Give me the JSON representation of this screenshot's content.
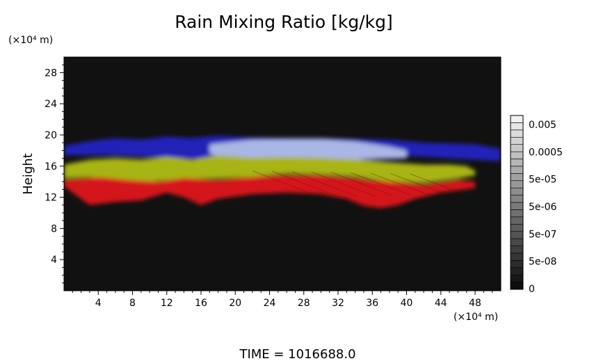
{
  "chart_data": {
    "type": "heatmap",
    "title": "Rain Mixing Ratio [kg/kg]",
    "ylabel": "Height",
    "yunit": "(×10⁴ m)",
    "xunit": "(×10⁴ m)",
    "xlim": [
      0,
      51
    ],
    "ylim": [
      0,
      30
    ],
    "xticks": [
      4,
      8,
      12,
      16,
      20,
      24,
      28,
      32,
      36,
      40,
      44,
      48
    ],
    "yticks": [
      4,
      8,
      12,
      16,
      20,
      24,
      28
    ],
    "colorbar": {
      "labels": [
        "0.005",
        "0.0005",
        "5e-05",
        "5e-06",
        "5e-07",
        "5e-08",
        "0"
      ]
    },
    "footer": "TIME = 1016688.0",
    "layers": [
      {
        "color": "#2424b8",
        "top": [
          [
            0,
            18.6
          ],
          [
            3,
            19.2
          ],
          [
            6,
            19.6
          ],
          [
            9,
            19.4
          ],
          [
            12,
            19.8
          ],
          [
            15,
            19.6
          ],
          [
            18,
            19.9
          ],
          [
            22,
            19.7
          ],
          [
            26,
            19.6
          ],
          [
            30,
            19.6
          ],
          [
            34,
            19.5
          ],
          [
            38,
            19.4
          ],
          [
            42,
            19.0
          ],
          [
            45,
            18.9
          ],
          [
            48,
            18.8
          ],
          [
            51,
            18.2
          ]
        ],
        "bottom": [
          [
            51,
            16.6
          ],
          [
            48,
            16.8
          ],
          [
            45,
            17.0
          ],
          [
            42,
            17.2
          ],
          [
            38,
            17.4
          ],
          [
            34,
            17.6
          ],
          [
            30,
            17.6
          ],
          [
            26,
            17.3
          ],
          [
            22,
            17.2
          ],
          [
            18,
            16.9
          ],
          [
            14,
            17.0
          ],
          [
            10,
            17.2
          ],
          [
            6,
            17.4
          ],
          [
            3,
            17.4
          ],
          [
            0,
            17.4
          ]
        ]
      },
      {
        "color": "#aab6e6",
        "top": [
          [
            17,
            18.8
          ],
          [
            22,
            19.4
          ],
          [
            26,
            19.5
          ],
          [
            30,
            19.5
          ],
          [
            34,
            19.2
          ],
          [
            38,
            18.5
          ],
          [
            40,
            18.0
          ]
        ],
        "bottom": [
          [
            40,
            17.0
          ],
          [
            36,
            16.9
          ],
          [
            30,
            16.8
          ],
          [
            24,
            16.8
          ],
          [
            19,
            17.0
          ],
          [
            17,
            17.6
          ]
        ]
      },
      {
        "color": "#a8b414",
        "top": [
          [
            0,
            16.2
          ],
          [
            3,
            16.8
          ],
          [
            6,
            17.0
          ],
          [
            9,
            16.8
          ],
          [
            12,
            17.2
          ],
          [
            15,
            16.8
          ],
          [
            18,
            17.4
          ],
          [
            22,
            17.1
          ],
          [
            26,
            17.2
          ],
          [
            30,
            17.1
          ],
          [
            34,
            16.9
          ],
          [
            38,
            16.5
          ],
          [
            42,
            16.2
          ],
          [
            45,
            16.2
          ],
          [
            47,
            16.0
          ],
          [
            48,
            15.4
          ]
        ],
        "bottom": [
          [
            48,
            14.8
          ],
          [
            46,
            14.4
          ],
          [
            42,
            13.8
          ],
          [
            38,
            14.0
          ],
          [
            34,
            14.6
          ],
          [
            30,
            14.9
          ],
          [
            26,
            15.0
          ],
          [
            22,
            14.6
          ],
          [
            18,
            14.4
          ],
          [
            14,
            14.4
          ],
          [
            10,
            14.0
          ],
          [
            6,
            14.2
          ],
          [
            3,
            14.6
          ],
          [
            0,
            14.4
          ]
        ]
      },
      {
        "color": "#d4141e",
        "top": [
          [
            0,
            14.2
          ],
          [
            4,
            14.6
          ],
          [
            8,
            14.2
          ],
          [
            11,
            14.0
          ],
          [
            14,
            14.5
          ],
          [
            18,
            14.2
          ],
          [
            22,
            14.6
          ],
          [
            26,
            14.8
          ],
          [
            30,
            14.8
          ],
          [
            34,
            14.4
          ],
          [
            38,
            14.0
          ],
          [
            42,
            13.6
          ],
          [
            46,
            14.2
          ],
          [
            48,
            14.0
          ]
        ],
        "bottom": [
          [
            48,
            13.2
          ],
          [
            44,
            12.6
          ],
          [
            41,
            11.8
          ],
          [
            39,
            11.0
          ],
          [
            37,
            10.6
          ],
          [
            35,
            10.9
          ],
          [
            33,
            11.8
          ],
          [
            30,
            12.4
          ],
          [
            26,
            12.6
          ],
          [
            22,
            12.4
          ],
          [
            18,
            11.8
          ],
          [
            16,
            11.0
          ],
          [
            14,
            12.0
          ],
          [
            12,
            12.6
          ],
          [
            9,
            11.6
          ],
          [
            6,
            11.4
          ],
          [
            3,
            11.0
          ],
          [
            1,
            12.6
          ],
          [
            0,
            13.4
          ]
        ]
      }
    ]
  }
}
